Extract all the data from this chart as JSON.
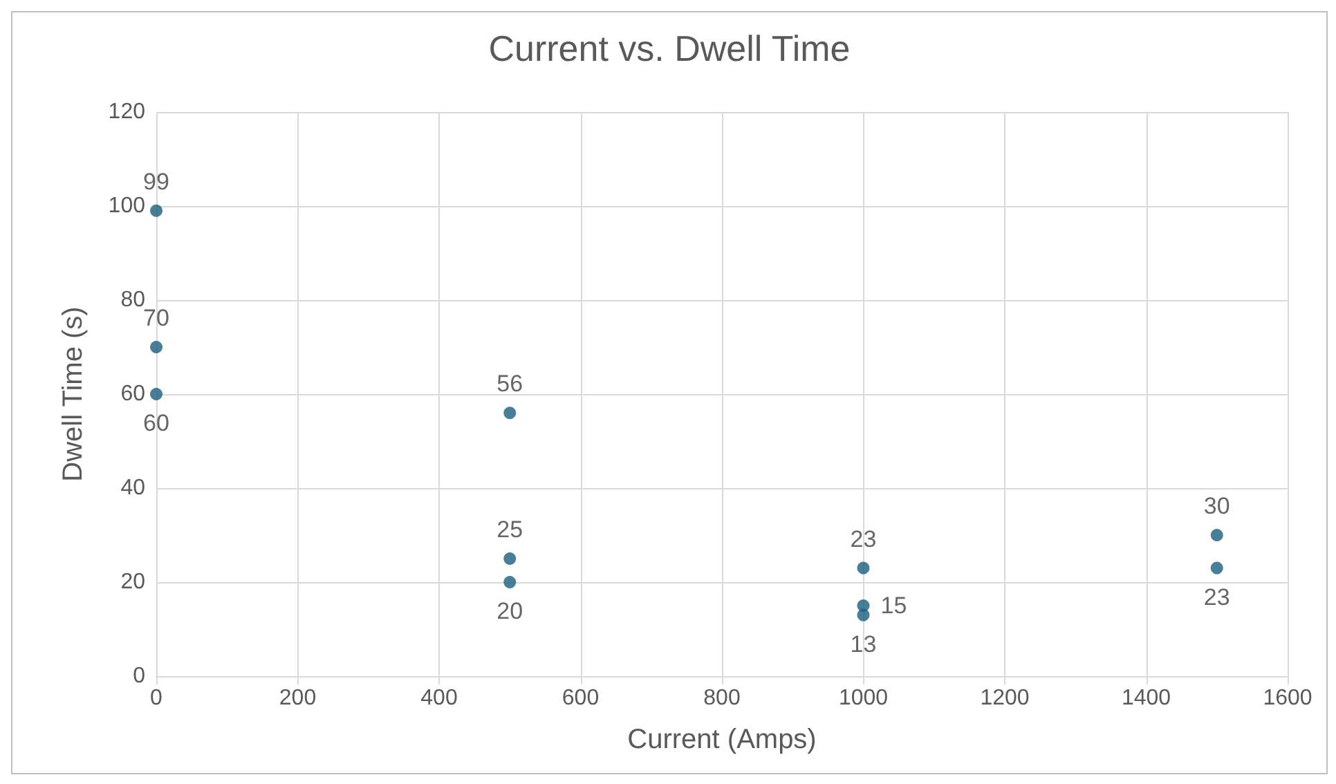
{
  "chart_data": {
    "type": "scatter",
    "title": "Current vs. Dwell Time",
    "xlabel": "Current (Amps)",
    "ylabel": "Dwell Time (s)",
    "x": [
      0,
      0,
      0,
      500,
      500,
      500,
      1000,
      1000,
      1000,
      1500,
      1500
    ],
    "series": [
      {
        "color": "#1b5e80",
        "values": [
          99,
          70,
          60,
          56,
          25,
          20,
          23,
          15,
          13,
          30,
          23
        ]
      }
    ],
    "xlim": [
      0,
      1600
    ],
    "xticks": [
      0,
      200,
      400,
      600,
      800,
      1000,
      1200,
      1400,
      1600
    ],
    "ylim": [
      0,
      120
    ],
    "yticks": [
      0,
      20,
      40,
      60,
      80,
      100,
      120
    ],
    "grid": true,
    "marker": "circle",
    "data_labels": true
  }
}
